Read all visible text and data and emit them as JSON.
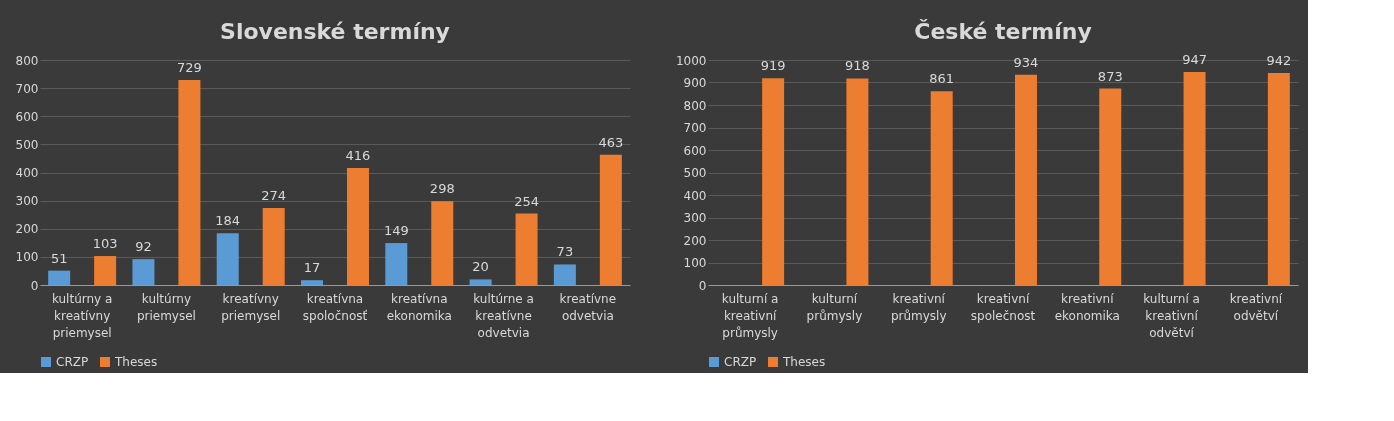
{
  "chart_data": [
    {
      "type": "bar",
      "title": "Slovenské termíny",
      "categories": [
        "kultúrny a kreatívny priemysel",
        "kultúrny priemysel",
        "kreatívny priemysel",
        "kreatívna spoločnosť",
        "kreatívna ekonomika",
        "kultúrne a kreatívne odvetvia",
        "kreatívne odvetvia"
      ],
      "series": [
        {
          "name": "CRZP",
          "color": "#5b9bd5",
          "values": [
            51,
            92,
            184,
            17,
            149,
            20,
            73
          ]
        },
        {
          "name": "Theses",
          "color": "#ed7d31",
          "values": [
            103,
            729,
            274,
            416,
            298,
            254,
            463
          ]
        }
      ],
      "ylim": [
        0,
        800
      ],
      "yticks": [
        0,
        100,
        200,
        300,
        400,
        500,
        600,
        700,
        800
      ],
      "grid": "y",
      "legend": "bottom",
      "data_labels": true
    },
    {
      "type": "bar",
      "title": "České termíny",
      "categories": [
        "kulturní a kreativní průmysly",
        "kulturní průmysly",
        "kreativní průmysly",
        "kreativní společnost",
        "kreativní ekonomika",
        "kulturní a kreativní odvětví",
        "kreativní odvětví"
      ],
      "series": [
        {
          "name": "CRZP",
          "color": "#5b9bd5",
          "values": [
            0,
            0,
            0,
            null,
            null,
            0,
            0
          ]
        },
        {
          "name": "Theses",
          "color": "#ed7d31",
          "values": [
            919,
            918,
            861,
            934,
            873,
            947,
            942
          ],
          "value_labels": [
            "919",
            "918",
            "861",
            "934",
            "873",
            "947",
            "942"
          ]
        }
      ],
      "ylim": [
        0,
        1000
      ],
      "yticks": [
        0,
        100,
        200,
        300,
        400,
        500,
        600,
        700,
        800,
        900,
        1000
      ],
      "grid": "y",
      "legend": "bottom"
    }
  ]
}
